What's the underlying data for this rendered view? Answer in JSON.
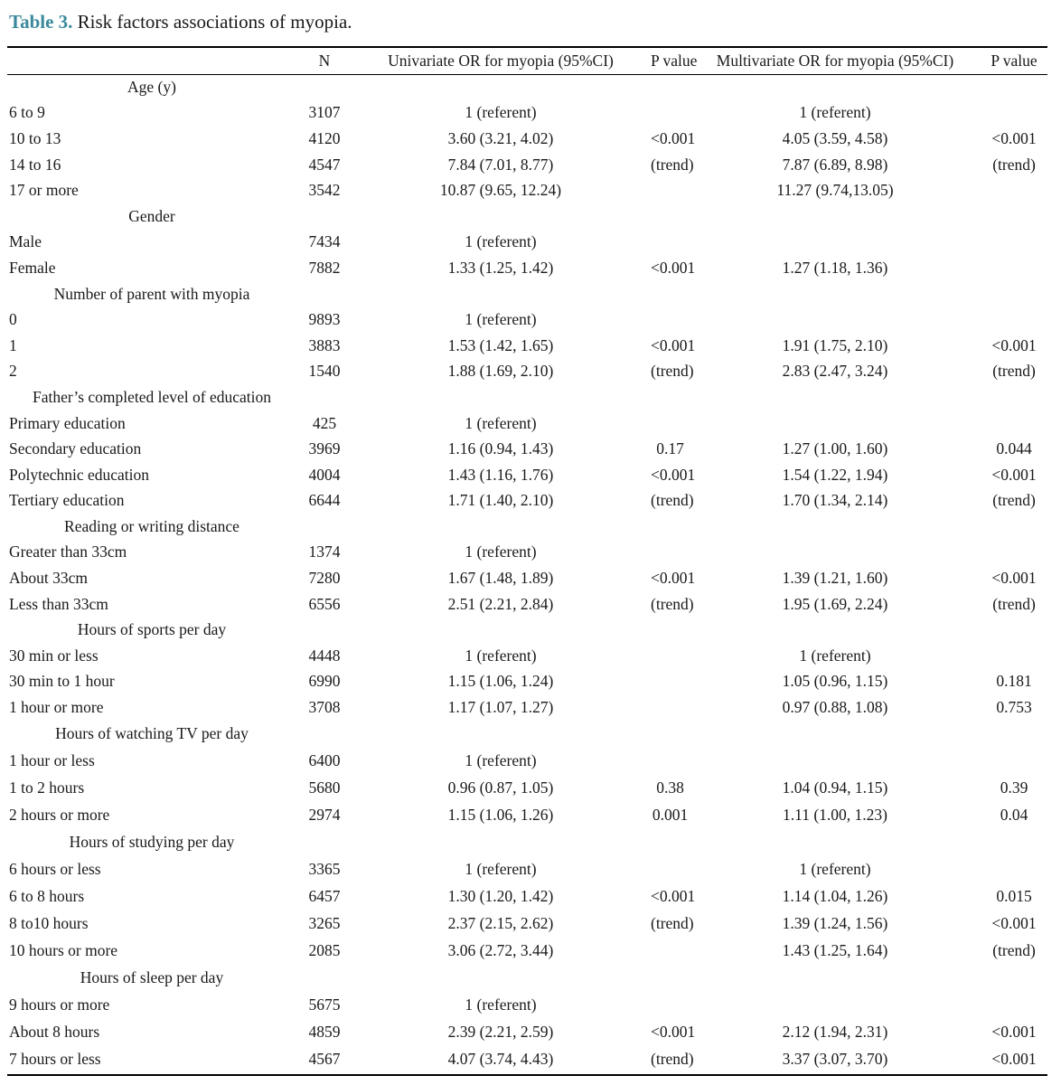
{
  "caption": {
    "label": "Table 3.",
    "text": "Risk factors associations of myopia."
  },
  "table": {
    "headers": [
      "",
      "N",
      "Univariate OR for myopia (95%CI)",
      "P value",
      "Multivariate OR for myopia (95%CI)",
      "P value"
    ],
    "rows": [
      {
        "section": "Age (y)"
      },
      {
        "cells": [
          "6 to 9",
          "3107",
          "1 (referent)",
          "",
          "1 (referent)",
          ""
        ]
      },
      {
        "cells": [
          "10 to 13",
          "4120",
          "3.60 (3.21, 4.02)",
          "<0.001",
          "4.05 (3.59, 4.58)",
          "<0.001"
        ]
      },
      {
        "cells": [
          "14 to 16",
          "4547",
          "7.84 (7.01, 8.77)",
          "(trend)",
          "7.87 (6.89, 8.98)",
          "(trend)"
        ]
      },
      {
        "cells": [
          "17 or more",
          "3542",
          "10.87 (9.65, 12.24)",
          "",
          "11.27 (9.74,13.05)",
          ""
        ]
      },
      {
        "section": "Gender"
      },
      {
        "cells": [
          "Male",
          "7434",
          "1 (referent)",
          "",
          "",
          ""
        ]
      },
      {
        "cells": [
          "Female",
          "7882",
          "1.33 (1.25, 1.42)",
          "<0.001",
          "1.27 (1.18, 1.36)",
          ""
        ]
      },
      {
        "section": "Number of parent with myopia"
      },
      {
        "cells": [
          "0",
          "9893",
          "1 (referent)",
          "",
          "",
          ""
        ]
      },
      {
        "cells": [
          "1",
          "3883",
          "1.53 (1.42, 1.65)",
          "<0.001",
          "1.91 (1.75, 2.10)",
          "<0.001"
        ]
      },
      {
        "cells": [
          "2",
          "1540",
          "1.88 (1.69, 2.10)",
          "(trend)",
          "2.83 (2.47, 3.24)",
          "(trend)"
        ]
      },
      {
        "section": "Father’s completed level of education"
      },
      {
        "cells": [
          "Primary education",
          "425",
          "1 (referent)",
          "",
          "",
          ""
        ]
      },
      {
        "cells": [
          "Secondary education",
          "3969",
          "1.16 (0.94, 1.43)",
          "0.17",
          "1.27 (1.00, 1.60)",
          "0.044"
        ]
      },
      {
        "cells": [
          "Polytechnic education",
          "4004",
          "1.43 (1.16, 1.76)",
          "<0.001",
          "1.54 (1.22, 1.94)",
          "<0.001"
        ]
      },
      {
        "cells": [
          "Tertiary education",
          "6644",
          "1.71 (1.40, 2.10)",
          "(trend)",
          "1.70 (1.34, 2.14)",
          "(trend)"
        ]
      },
      {
        "section": "Reading or writing distance"
      },
      {
        "cells": [
          "Greater than 33cm",
          "1374",
          "1 (referent)",
          "",
          "",
          ""
        ]
      },
      {
        "cells": [
          "About 33cm",
          "7280",
          "1.67 (1.48, 1.89)",
          "<0.001",
          "1.39 (1.21, 1.60)",
          "<0.001"
        ]
      },
      {
        "cells": [
          "Less than 33cm",
          "6556",
          "2.51 (2.21, 2.84)",
          "(trend)",
          "1.95 (1.69, 2.24)",
          "(trend)"
        ]
      },
      {
        "section": "Hours of sports per day"
      },
      {
        "cells": [
          "30 min or less",
          "4448",
          "1 (referent)",
          "",
          "1 (referent)",
          ""
        ]
      },
      {
        "cells": [
          "30 min to 1 hour",
          "6990",
          "1.15 (1.06, 1.24)",
          "",
          "1.05 (0.96, 1.15)",
          "0.181"
        ]
      },
      {
        "cells": [
          "1 hour or more",
          "3708",
          "1.17 (1.07, 1.27)",
          "",
          "0.97 (0.88, 1.08)",
          "0.753"
        ]
      },
      {
        "section": "Hours of watching TV per day"
      },
      {
        "cells": [
          "1 hour or less",
          "6400",
          "1 (referent)",
          "",
          "",
          ""
        ]
      },
      {
        "cells": [
          "1 to 2 hours",
          "5680",
          "0.96 (0.87, 1.05)",
          "0.38",
          "1.04 (0.94, 1.15)",
          "0.39"
        ]
      },
      {
        "cells": [
          "2 hours or more",
          "2974",
          "1.15 (1.06, 1.26)",
          "0.001",
          "1.11 (1.00, 1.23)",
          "0.04"
        ]
      },
      {
        "section": "Hours of studying per day"
      },
      {
        "cells": [
          "6 hours or less",
          "3365",
          "1 (referent)",
          "",
          "1 (referent)",
          ""
        ]
      },
      {
        "cells": [
          "6 to 8 hours",
          "6457",
          "1.30 (1.20, 1.42)",
          "<0.001",
          "1.14 (1.04, 1.26)",
          "0.015"
        ]
      },
      {
        "cells": [
          "8 to10 hours",
          "3265",
          "2.37 (2.15, 2.62)",
          "(trend)",
          "1.39 (1.24, 1.56)",
          "<0.001"
        ]
      },
      {
        "cells": [
          "10 hours or more",
          "2085",
          "3.06 (2.72, 3.44)",
          "",
          "1.43 (1.25, 1.64)",
          "(trend)"
        ]
      },
      {
        "section": "Hours of sleep per day"
      },
      {
        "cells": [
          "9 hours or more",
          "5675",
          "1 (referent)",
          "",
          "",
          ""
        ]
      },
      {
        "cells": [
          "About 8 hours",
          "4859",
          "2.39 (2.21, 2.59)",
          "<0.001",
          "2.12 (1.94, 2.31)",
          "<0.001"
        ]
      },
      {
        "cells": [
          "7 hours or less",
          "4567",
          "4.07 (3.74, 4.43)",
          "(trend)",
          "3.37 (3.07, 3.70)",
          "<0.001"
        ]
      }
    ]
  }
}
